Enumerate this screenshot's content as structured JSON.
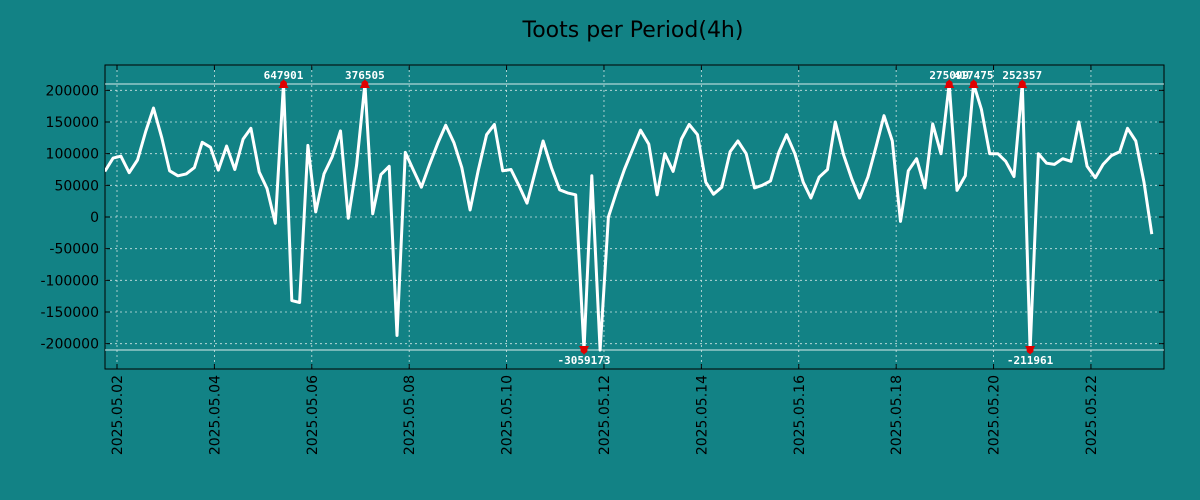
{
  "chart_data": {
    "type": "line",
    "title": "Toots per Period(4h)",
    "xlabel": "",
    "ylabel": "",
    "grid": true,
    "x_range_days": [
      0.0,
      21.5
    ],
    "x_start_date": "2025.05.02",
    "ylim": [
      -240000,
      240000
    ],
    "clip": {
      "upper": 210000,
      "lower": -210000
    },
    "colors": {
      "background": "#128285",
      "plot_area": "#128285",
      "line": "#ffffff",
      "marker": "#e00000",
      "grid": "#cfe3e3",
      "axis": "#000000"
    },
    "yticks": [
      {
        "value": 200000,
        "label": "200000"
      },
      {
        "value": 150000,
        "label": "150000"
      },
      {
        "value": 100000,
        "label": "100000"
      },
      {
        "value": 50000,
        "label": "50000"
      },
      {
        "value": 0,
        "label": "0"
      },
      {
        "value": -50000,
        "label": "-50000"
      },
      {
        "value": -100000,
        "label": "-100000"
      },
      {
        "value": -150000,
        "label": "-150000"
      },
      {
        "value": -200000,
        "label": "-200000"
      }
    ],
    "xticks": [
      {
        "day": 0,
        "label": "2025.05.02"
      },
      {
        "day": 2,
        "label": "2025.05.04"
      },
      {
        "day": 4,
        "label": "2025.05.06"
      },
      {
        "day": 6,
        "label": "2025.05.08"
      },
      {
        "day": 8,
        "label": "2025.05.10"
      },
      {
        "day": 10,
        "label": "2025.05.12"
      },
      {
        "day": 12,
        "label": "2025.05.14"
      },
      {
        "day": 14,
        "label": "2025.05.16"
      },
      {
        "day": 16,
        "label": "2025.05.18"
      },
      {
        "day": 18,
        "label": "2025.05.20"
      },
      {
        "day": 20,
        "label": "2025.05.22"
      }
    ],
    "series": [
      {
        "name": "toots",
        "points": [
          [
            -0.25,
            72000
          ],
          [
            -0.08,
            93000
          ],
          [
            0.08,
            96000
          ],
          [
            0.25,
            70000
          ],
          [
            0.42,
            90000
          ],
          [
            0.59,
            135000
          ],
          [
            0.75,
            172000
          ],
          [
            0.92,
            125000
          ],
          [
            1.08,
            73000
          ],
          [
            1.25,
            65000
          ],
          [
            1.42,
            68000
          ],
          [
            1.59,
            78000
          ],
          [
            1.75,
            118000
          ],
          [
            1.92,
            110000
          ],
          [
            2.08,
            74000
          ],
          [
            2.25,
            112000
          ],
          [
            2.42,
            75000
          ],
          [
            2.59,
            123000
          ],
          [
            2.75,
            140000
          ],
          [
            2.92,
            71000
          ],
          [
            3.08,
            45000
          ],
          [
            3.25,
            -10000
          ],
          [
            3.42,
            210000
          ],
          [
            3.59,
            -132000
          ],
          [
            3.75,
            -135000
          ],
          [
            3.92,
            113000
          ],
          [
            4.08,
            8000
          ],
          [
            4.25,
            68000
          ],
          [
            4.42,
            95000
          ],
          [
            4.59,
            136000
          ],
          [
            4.75,
            -2000
          ],
          [
            4.92,
            82000
          ],
          [
            5.09,
            210000
          ],
          [
            5.25,
            5000
          ],
          [
            5.42,
            67000
          ],
          [
            5.59,
            80000
          ],
          [
            5.75,
            -187000
          ],
          [
            5.92,
            102000
          ],
          [
            6.08,
            75000
          ],
          [
            6.25,
            47000
          ],
          [
            6.42,
            83000
          ],
          [
            6.59,
            117000
          ],
          [
            6.75,
            145000
          ],
          [
            6.92,
            117000
          ],
          [
            7.08,
            78000
          ],
          [
            7.25,
            11000
          ],
          [
            7.42,
            74000
          ],
          [
            7.59,
            130000
          ],
          [
            7.75,
            146000
          ],
          [
            7.92,
            73000
          ],
          [
            8.09,
            75000
          ],
          [
            8.25,
            50000
          ],
          [
            8.42,
            22000
          ],
          [
            8.59,
            72000
          ],
          [
            8.75,
            120000
          ],
          [
            8.92,
            78000
          ],
          [
            9.09,
            43000
          ],
          [
            9.25,
            38000
          ],
          [
            9.42,
            35000
          ],
          [
            9.59,
            -210000
          ],
          [
            9.75,
            65000
          ],
          [
            9.92,
            -210000
          ],
          [
            10.09,
            0
          ],
          [
            10.25,
            38000
          ],
          [
            10.42,
            75000
          ],
          [
            10.59,
            107000
          ],
          [
            10.75,
            137000
          ],
          [
            10.92,
            115000
          ],
          [
            11.09,
            35000
          ],
          [
            11.25,
            100000
          ],
          [
            11.42,
            72000
          ],
          [
            11.59,
            123000
          ],
          [
            11.75,
            146000
          ],
          [
            11.92,
            130000
          ],
          [
            12.09,
            55000
          ],
          [
            12.25,
            36000
          ],
          [
            12.42,
            47000
          ],
          [
            12.59,
            103000
          ],
          [
            12.75,
            120000
          ],
          [
            12.92,
            100000
          ],
          [
            13.09,
            46000
          ],
          [
            13.25,
            50000
          ],
          [
            13.42,
            57000
          ],
          [
            13.59,
            102000
          ],
          [
            13.75,
            130000
          ],
          [
            13.92,
            100000
          ],
          [
            14.09,
            55000
          ],
          [
            14.25,
            30000
          ],
          [
            14.42,
            63000
          ],
          [
            14.59,
            75000
          ],
          [
            14.75,
            150000
          ],
          [
            14.92,
            98000
          ],
          [
            15.09,
            60000
          ],
          [
            15.25,
            30000
          ],
          [
            15.42,
            63000
          ],
          [
            15.59,
            112000
          ],
          [
            15.75,
            160000
          ],
          [
            15.92,
            120000
          ],
          [
            16.09,
            -7000
          ],
          [
            16.25,
            73000
          ],
          [
            16.42,
            92000
          ],
          [
            16.59,
            46000
          ],
          [
            16.75,
            147000
          ],
          [
            16.92,
            100000
          ],
          [
            17.09,
            210000
          ],
          [
            17.25,
            42000
          ],
          [
            17.42,
            65000
          ],
          [
            17.59,
            210000
          ],
          [
            17.75,
            170000
          ],
          [
            17.92,
            100000
          ],
          [
            18.09,
            100000
          ],
          [
            18.25,
            88000
          ],
          [
            18.42,
            64000
          ],
          [
            18.59,
            210000
          ],
          [
            18.75,
            -210000
          ],
          [
            18.92,
            100000
          ],
          [
            19.09,
            85000
          ],
          [
            19.25,
            83000
          ],
          [
            19.42,
            92000
          ],
          [
            19.59,
            88000
          ],
          [
            19.75,
            150000
          ],
          [
            19.92,
            80000
          ],
          [
            20.09,
            62000
          ],
          [
            20.25,
            83000
          ],
          [
            20.42,
            97000
          ],
          [
            20.59,
            103000
          ],
          [
            20.75,
            140000
          ],
          [
            20.92,
            120000
          ],
          [
            21.09,
            55000
          ],
          [
            21.25,
            -27000
          ]
        ]
      }
    ],
    "annotations": [
      {
        "day": 3.42,
        "value": 647901,
        "label": "647901",
        "side": "top"
      },
      {
        "day": 5.09,
        "value": 376505,
        "label": "376505",
        "side": "top"
      },
      {
        "day": 9.59,
        "value": -3059173,
        "label": "-3059173",
        "side": "bottom"
      },
      {
        "day": 17.09,
        "value": 275099,
        "label": "275099",
        "side": "top"
      },
      {
        "day": 17.59,
        "value": 417475,
        "label": "417475",
        "side": "top"
      },
      {
        "day": 18.59,
        "value": 252357,
        "label": "252357",
        "side": "top"
      },
      {
        "day": 18.75,
        "value": -211961,
        "label": "-211961",
        "side": "bottom"
      }
    ]
  }
}
